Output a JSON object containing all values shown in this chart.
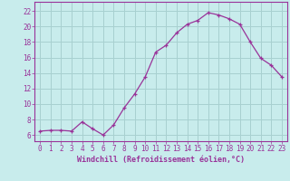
{
  "x": [
    0,
    1,
    2,
    3,
    4,
    5,
    6,
    7,
    8,
    9,
    10,
    11,
    12,
    13,
    14,
    15,
    16,
    17,
    18,
    19,
    20,
    21,
    22,
    23
  ],
  "y": [
    6.5,
    6.6,
    6.6,
    6.5,
    7.7,
    6.8,
    6.0,
    7.3,
    9.5,
    11.3,
    13.5,
    16.7,
    17.6,
    19.2,
    20.3,
    20.8,
    21.8,
    21.5,
    21.0,
    20.3,
    18.0,
    15.9,
    15.0,
    13.5
  ],
  "line_color": "#993399",
  "marker": "+",
  "bg_color": "#c8ecec",
  "grid_color": "#a8d0d0",
  "xlabel": "Windchill (Refroidissement éolien,°C)",
  "ytick_vals": [
    6,
    8,
    10,
    12,
    14,
    16,
    18,
    20,
    22
  ],
  "xlim": [
    -0.5,
    23.5
  ],
  "ylim": [
    5.2,
    23.2
  ],
  "xtick_labels": [
    "0",
    "1",
    "2",
    "3",
    "4",
    "5",
    "6",
    "7",
    "8",
    "9",
    "10",
    "11",
    "12",
    "13",
    "14",
    "15",
    "16",
    "17",
    "18",
    "19",
    "20",
    "21",
    "22",
    "23"
  ],
  "font_color": "#993399",
  "tick_fontsize": 5.5,
  "label_fontsize": 6.0
}
